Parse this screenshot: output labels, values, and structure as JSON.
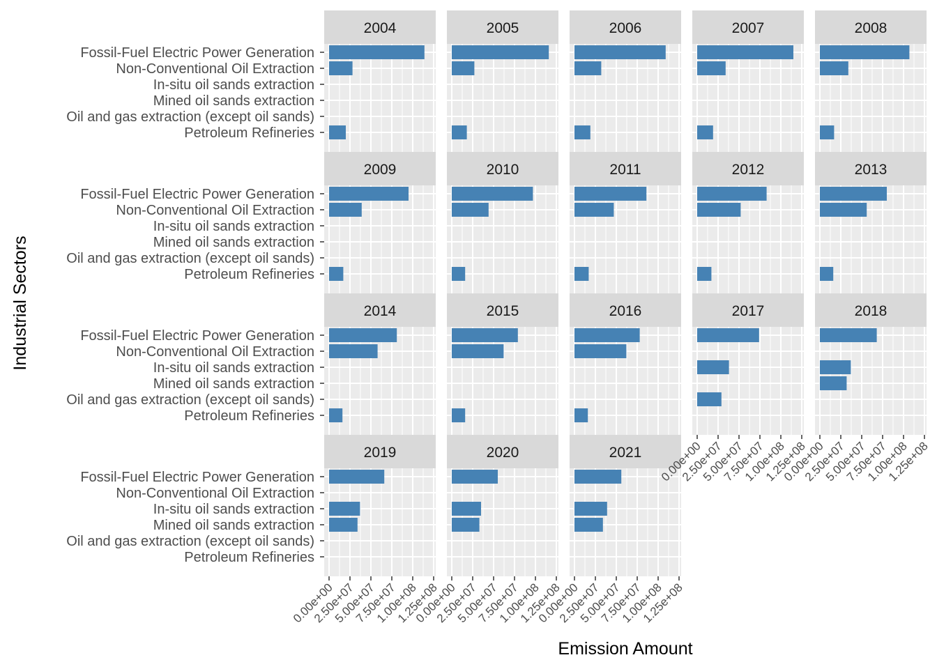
{
  "chart_data": {
    "type": "bar",
    "orientation": "horizontal",
    "faceted_by": "year",
    "xlabel": "Emission Amount",
    "ylabel": "Industrial Sectors",
    "xlim": [
      0,
      130000000
    ],
    "x_ticks": [
      0,
      25000000,
      50000000,
      75000000,
      100000000,
      125000000
    ],
    "x_tick_labels": [
      "0.00e+00",
      "2.50e+07",
      "5.00e+07",
      "7.50e+07",
      "1.00e+08",
      "1.25e+08"
    ],
    "categories": [
      "Fossil-Fuel Electric Power Generation",
      "Non-Conventional Oil Extraction",
      "In-situ oil sands extraction",
      "Mined oil sands extraction",
      "Oil and gas extraction (except oil sands)",
      "Petroleum Refineries"
    ],
    "bar_color": "#4682B4",
    "grid": true,
    "facets": [
      {
        "label": "2004",
        "values": [
          114000000,
          28000000,
          null,
          null,
          null,
          20000000
        ]
      },
      {
        "label": "2005",
        "values": [
          116000000,
          27000000,
          null,
          null,
          null,
          18000000
        ]
      },
      {
        "label": "2006",
        "values": [
          109000000,
          32000000,
          null,
          null,
          null,
          19000000
        ]
      },
      {
        "label": "2007",
        "values": [
          115000000,
          34000000,
          null,
          null,
          null,
          19000000
        ]
      },
      {
        "label": "2008",
        "values": [
          107000000,
          34000000,
          null,
          null,
          null,
          17000000
        ]
      },
      {
        "label": "2009",
        "values": [
          95000000,
          39000000,
          null,
          null,
          null,
          17000000
        ]
      },
      {
        "label": "2010",
        "values": [
          97000000,
          44000000,
          null,
          null,
          null,
          16000000
        ]
      },
      {
        "label": "2011",
        "values": [
          86000000,
          47000000,
          null,
          null,
          null,
          17000000
        ]
      },
      {
        "label": "2012",
        "values": [
          83000000,
          52000000,
          null,
          null,
          null,
          17000000
        ]
      },
      {
        "label": "2013",
        "values": [
          80000000,
          56000000,
          null,
          null,
          null,
          16000000
        ]
      },
      {
        "label": "2014",
        "values": [
          81000000,
          58000000,
          null,
          null,
          null,
          16000000
        ]
      },
      {
        "label": "2015",
        "values": [
          79000000,
          62000000,
          null,
          null,
          null,
          16000000
        ]
      },
      {
        "label": "2016",
        "values": [
          78000000,
          62000000,
          null,
          null,
          null,
          16000000
        ]
      },
      {
        "label": "2017",
        "values": [
          74000000,
          null,
          38000000,
          null,
          29000000,
          null
        ]
      },
      {
        "label": "2018",
        "values": [
          68000000,
          null,
          37000000,
          32000000,
          null,
          null
        ]
      },
      {
        "label": "2019",
        "values": [
          66000000,
          null,
          37000000,
          34000000,
          null,
          null
        ]
      },
      {
        "label": "2020",
        "values": [
          55000000,
          null,
          35000000,
          33000000,
          null,
          null
        ]
      },
      {
        "label": "2021",
        "values": [
          56000000,
          null,
          39000000,
          34000000,
          null,
          null
        ]
      }
    ]
  }
}
